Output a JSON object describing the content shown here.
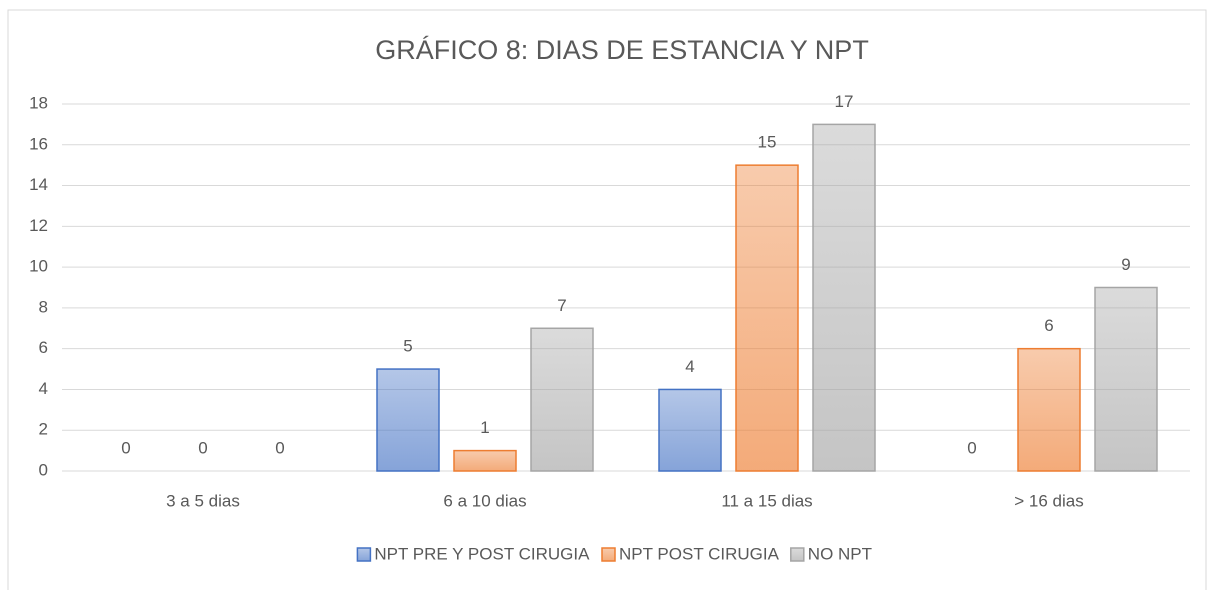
{
  "chart_data": {
    "type": "bar",
    "title": "GRÁFICO 8: DIAS DE ESTANCIA Y NPT",
    "categories": [
      "3 a 5 dias",
      "6  a 10 dias",
      "11 a 15 dias",
      "> 16 dias"
    ],
    "series": [
      {
        "name": "NPT PRE Y POST CIRUGIA",
        "color": "#4472c4",
        "values": [
          0,
          5,
          4,
          0
        ]
      },
      {
        "name": "NPT POST CIRUGIA",
        "color": "#ed7d31",
        "values": [
          0,
          1,
          15,
          6
        ]
      },
      {
        "name": "NO NPT",
        "color": "#a5a5a5",
        "values": [
          0,
          7,
          17,
          9
        ]
      }
    ],
    "ylim": [
      0,
      18
    ],
    "yticks": [
      0,
      2,
      4,
      6,
      8,
      10,
      12,
      14,
      16,
      18
    ],
    "grid": true,
    "legend": "bottom"
  }
}
